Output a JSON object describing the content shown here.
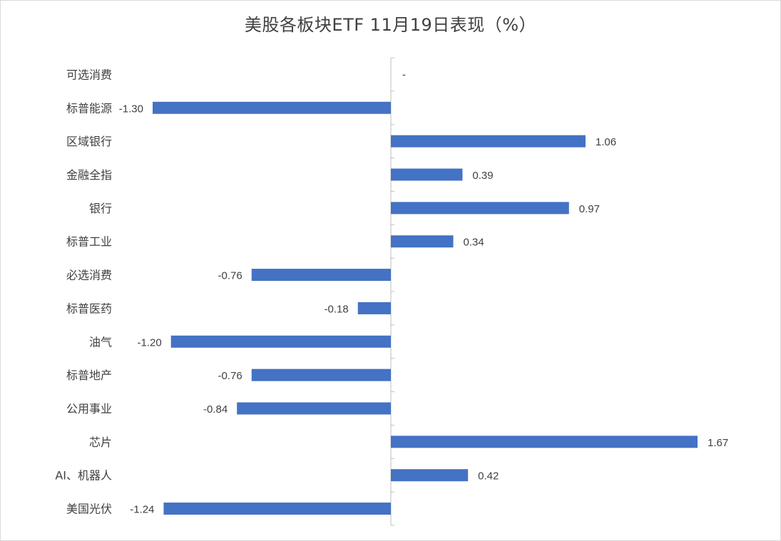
{
  "chart_data": {
    "type": "bar",
    "orientation": "horizontal",
    "title": "美股各板块ETF  11月19日表现（%）",
    "categories": [
      "可选消费",
      "标普能源",
      "区域银行",
      "金融全指",
      "银行",
      "标普工业",
      "必选消费",
      "标普医药",
      "油气",
      "标普地产",
      "公用事业",
      "芯片",
      "AI、机器人",
      "美国光伏"
    ],
    "values": [
      null,
      -1.3,
      1.06,
      0.39,
      0.97,
      0.34,
      -0.76,
      -0.18,
      -1.2,
      -0.76,
      -0.84,
      1.67,
      0.42,
      -1.24
    ],
    "value_labels": [
      "-",
      "-1.30",
      "1.06",
      "0.39",
      "0.97",
      "0.34",
      "-0.76",
      "-0.18",
      "-1.20",
      "-0.76",
      "-0.84",
      "1.67",
      "0.42",
      "-1.24"
    ],
    "xlim": [
      -1.3,
      1.67
    ],
    "bar_color": "#4472C4",
    "grid": false,
    "legend": "none"
  }
}
